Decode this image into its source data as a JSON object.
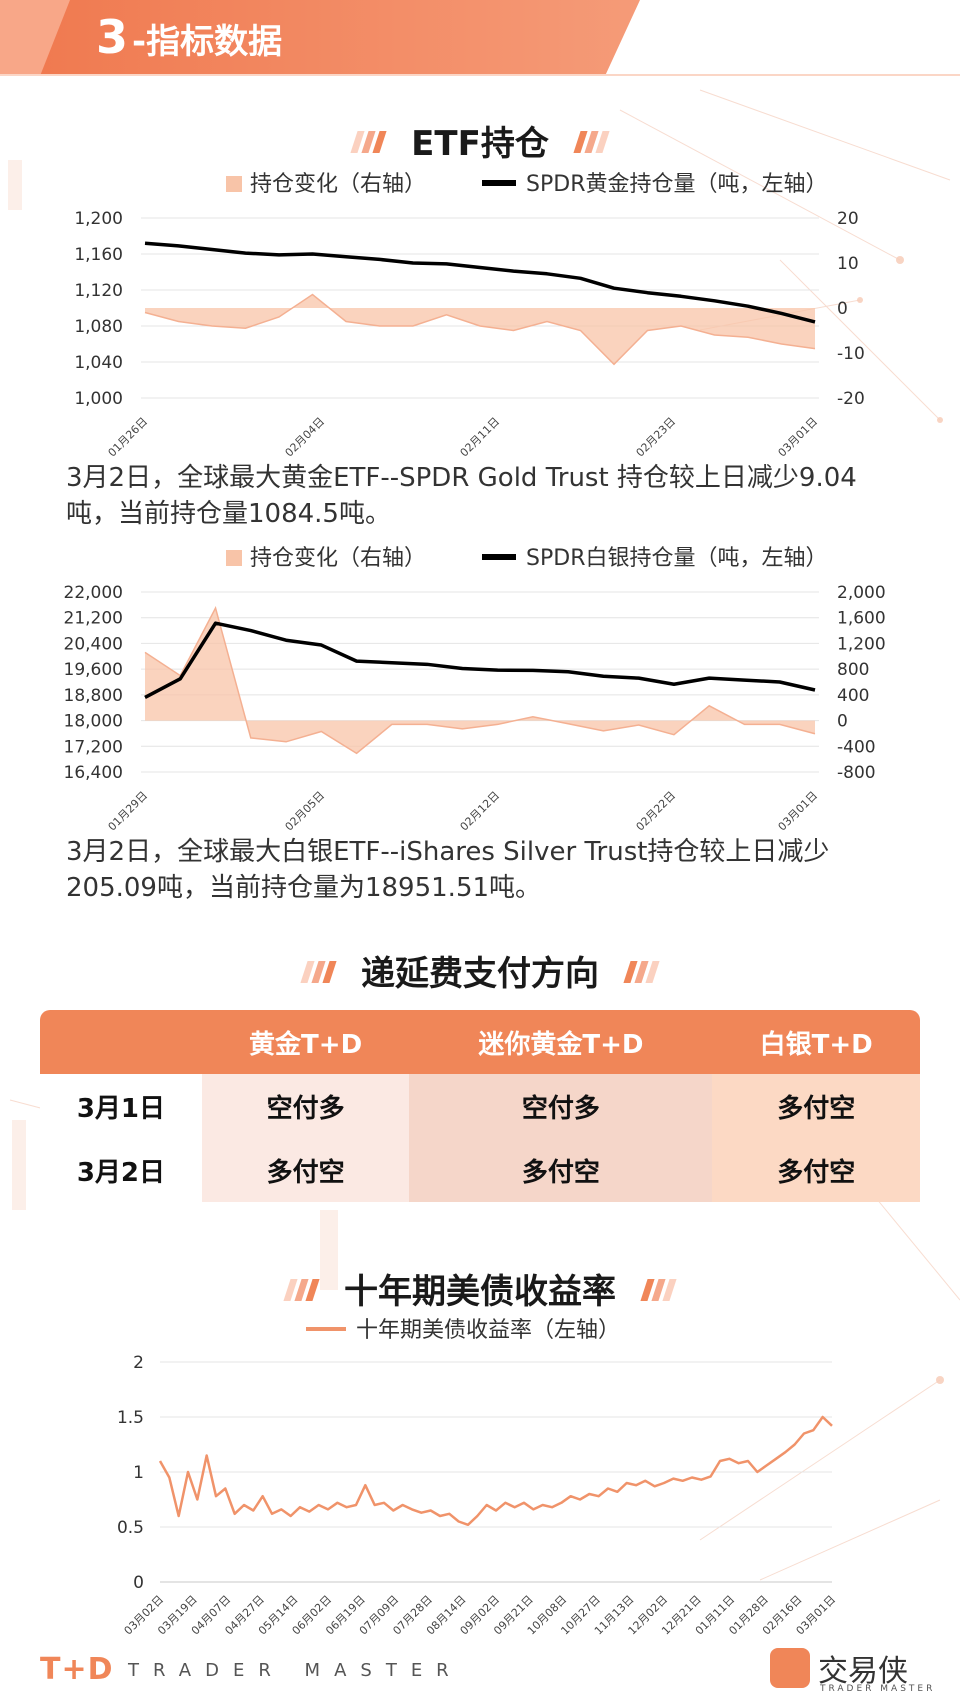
{
  "header": {
    "number": "3",
    "title": "-指标数据"
  },
  "colors": {
    "accent": "#f08658",
    "area": "#f8c4a8",
    "line": "#000000",
    "yield_line": "#f0936a"
  },
  "sections": {
    "etf": "ETF持仓",
    "deferral": "递延费支付方向",
    "treasury": "十年期美债收益率"
  },
  "gold": {
    "legend_area": "持仓变化（右轴）",
    "legend_line": "SPDR黄金持仓量（吨，左轴）",
    "note": "3月2日，全球最大黄金ETF--SPDR Gold Trust 持仓较上日减少9.04吨，当前持仓量1084.5吨。"
  },
  "silver": {
    "legend_area": "持仓变化（右轴）",
    "legend_line": "SPDR白银持仓量（吨，左轴）",
    "note": "3月2日，全球最大白银ETF--iShares Silver Trust持仓较上日减少205.09吨，当前持仓量为18951.51吨。"
  },
  "treasury": {
    "legend": "十年期美债收益率（左轴）"
  },
  "deferral_table": {
    "headers": [
      "",
      "黄金T+D",
      "迷你黄金T+D",
      "白银T+D"
    ],
    "rows": [
      [
        "3月1日",
        "空付多",
        "空付多",
        "多付空"
      ],
      [
        "3月2日",
        "多付空",
        "多付空",
        "多付空"
      ]
    ]
  },
  "footer": {
    "logo": "T+D",
    "tagline": "TRADER MASTER",
    "brand": "交易侠",
    "brand_sub": "TRADER MASTER"
  },
  "chart_data": [
    {
      "type": "line",
      "x_ticks": [
        "01月26日",
        "02月04日",
        "02月11日",
        "02月23日",
        "03月01日"
      ],
      "left_axis": {
        "ylim": [
          1000,
          1200
        ],
        "ticks": [
          "1,000",
          "1,040",
          "1,080",
          "1,120",
          "1,160",
          "1,200"
        ]
      },
      "right_axis": {
        "ylim": [
          -20,
          20
        ],
        "ticks": [
          "-20",
          "-10",
          "0",
          "10",
          "20"
        ]
      },
      "series": [
        {
          "name": "SPDR黄金持仓量（吨，左轴）",
          "axis": "left",
          "type": "line",
          "values": [
            1172,
            1169,
            1165,
            1161,
            1159,
            1160,
            1157,
            1154,
            1150,
            1149,
            1145,
            1141,
            1138,
            1133,
            1122,
            1117,
            1113,
            1108,
            1102,
            1094,
            1084.5
          ]
        },
        {
          "name": "持仓变化（右轴）",
          "axis": "right",
          "type": "area",
          "values": [
            -1,
            -3,
            -4,
            -4.5,
            -2,
            3,
            -3,
            -4,
            -4,
            -1.5,
            -4,
            -5,
            -3,
            -5,
            -12.5,
            -5,
            -4,
            -6,
            -6.5,
            -8,
            -9.04
          ]
        }
      ]
    },
    {
      "type": "line",
      "x_ticks": [
        "01月29日",
        "02月05日",
        "02月12日",
        "02月22日",
        "03月01日"
      ],
      "left_axis": {
        "ylim": [
          16400,
          22000
        ],
        "ticks": [
          "16,400",
          "17,200",
          "18,000",
          "18,800",
          "19,600",
          "20,400",
          "21,200",
          "22,000"
        ]
      },
      "right_axis": {
        "ylim": [
          -800,
          2000
        ],
        "ticks": [
          "-800",
          "-400",
          "0",
          "400",
          "800",
          "1,200",
          "1,600",
          "2,000"
        ]
      },
      "series": [
        {
          "name": "SPDR白银持仓量（吨，左轴）",
          "axis": "left",
          "type": "line",
          "values": [
            18720,
            19300,
            21030,
            20800,
            20500,
            20350,
            19850,
            19800,
            19750,
            19620,
            19570,
            19560,
            19520,
            19380,
            19320,
            19130,
            19320,
            19260,
            19200,
            18951.51
          ]
        },
        {
          "name": "持仓变化（右轴）",
          "axis": "right",
          "type": "area",
          "values": [
            1060,
            700,
            1750,
            -270,
            -330,
            -170,
            -510,
            -60,
            -60,
            -130,
            -60,
            60,
            -50,
            -160,
            -70,
            -220,
            230,
            -60,
            -60,
            -205.09
          ]
        }
      ]
    },
    {
      "type": "line",
      "x_ticks": [
        "03月02日",
        "03月19日",
        "04月07日",
        "04月27日",
        "05月14日",
        "06月02日",
        "06月19日",
        "07月09日",
        "07月28日",
        "08月14日",
        "09月02日",
        "09月21日",
        "10月08日",
        "10月27日",
        "11月13日",
        "12月02日",
        "12月21日",
        "01月11日",
        "01月28日",
        "02月16日",
        "03月01日"
      ],
      "ylim": [
        0,
        2
      ],
      "y_ticks": [
        "0",
        "0.5",
        "1",
        "1.5",
        "2"
      ],
      "series": [
        {
          "name": "十年期美债收益率（左轴）",
          "values": [
            1.1,
            0.95,
            0.6,
            1.0,
            0.75,
            1.15,
            0.78,
            0.85,
            0.62,
            0.7,
            0.65,
            0.78,
            0.62,
            0.66,
            0.6,
            0.68,
            0.64,
            0.7,
            0.66,
            0.72,
            0.68,
            0.7,
            0.88,
            0.7,
            0.72,
            0.65,
            0.7,
            0.66,
            0.63,
            0.65,
            0.6,
            0.62,
            0.55,
            0.52,
            0.6,
            0.7,
            0.65,
            0.72,
            0.68,
            0.72,
            0.66,
            0.7,
            0.68,
            0.72,
            0.78,
            0.75,
            0.8,
            0.78,
            0.85,
            0.82,
            0.9,
            0.88,
            0.92,
            0.87,
            0.9,
            0.94,
            0.92,
            0.95,
            0.93,
            0.96,
            1.1,
            1.12,
            1.08,
            1.1,
            1.0,
            1.06,
            1.12,
            1.18,
            1.25,
            1.35,
            1.38,
            1.5,
            1.42
          ]
        }
      ]
    }
  ]
}
